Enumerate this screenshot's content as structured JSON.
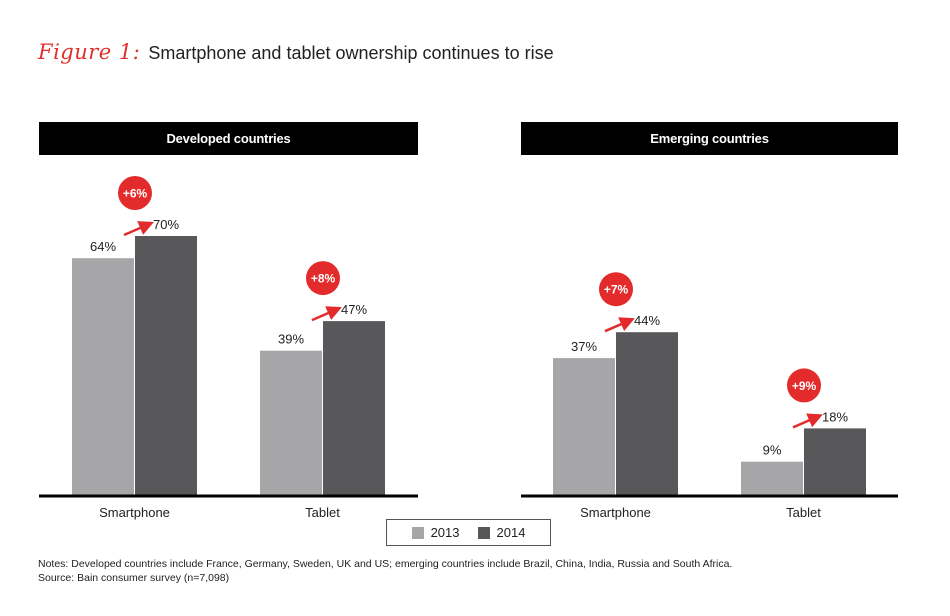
{
  "header": {
    "figure_label": "Figure 1:",
    "title": "Smartphone and tablet ownership continues to rise"
  },
  "colors": {
    "series_2013": "#a6a6a8",
    "series_2014": "#58585a",
    "accent": "#e32b2b",
    "header_bg": "#000000"
  },
  "legend": {
    "items": [
      "2013",
      "2014"
    ]
  },
  "notes": {
    "line1": "Notes: Developed countries include France, Germany, Sweden, UK and US; emerging countries include Brazil, China, India, Russia and South Africa.",
    "line2": "Source: Bain consumer survey (n=7,098)"
  },
  "chart_data": [
    {
      "type": "bar",
      "title": "Developed countries",
      "categories": [
        "Smartphone",
        "Tablet"
      ],
      "series": [
        {
          "name": "2013",
          "values": [
            64,
            39
          ],
          "labels": [
            "64%",
            "39%"
          ]
        },
        {
          "name": "2014",
          "values": [
            70,
            47
          ],
          "labels": [
            "70%",
            "47%"
          ]
        }
      ],
      "annotations": [
        "+6%",
        "+8%"
      ],
      "ylim": [
        0,
        100
      ]
    },
    {
      "type": "bar",
      "title": "Emerging countries",
      "categories": [
        "Smartphone",
        "Tablet"
      ],
      "series": [
        {
          "name": "2013",
          "values": [
            37,
            9
          ],
          "labels": [
            "37%",
            "9%"
          ]
        },
        {
          "name": "2014",
          "values": [
            44,
            18
          ],
          "labels": [
            "44%",
            "18%"
          ]
        }
      ],
      "annotations": [
        "+7%",
        "+9%"
      ],
      "ylim": [
        0,
        100
      ]
    }
  ]
}
